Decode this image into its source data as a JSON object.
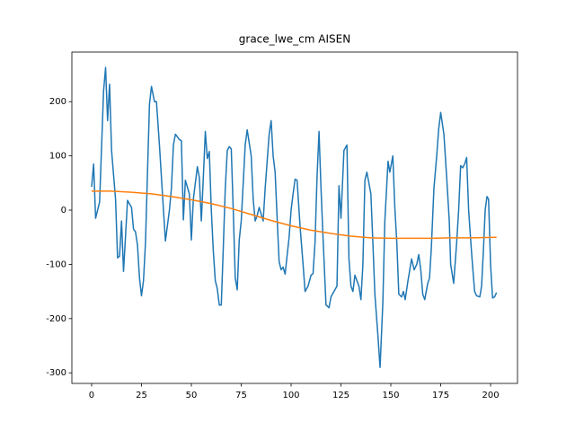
{
  "chart_data": {
    "type": "line",
    "title": "grace_lwe_cm AISEN",
    "xlim": [
      -9.9,
      213.5
    ],
    "xticks": [
      0,
      25,
      50,
      75,
      100,
      125,
      150,
      175,
      200
    ],
    "ylim": [
      -319.5,
      291.4
    ],
    "yticks": [
      -300,
      -200,
      -100,
      0,
      100,
      200
    ],
    "series": [
      {
        "color": "#1f77b4",
        "x": [
          0,
          1,
          2,
          4,
          6,
          7,
          8,
          9,
          10,
          12,
          13,
          14,
          15,
          16,
          18,
          20,
          21,
          22,
          23,
          24,
          25,
          26,
          27,
          29,
          30,
          31.5,
          32.5,
          34,
          35,
          37,
          39,
          40,
          41,
          42,
          44,
          45,
          46,
          47,
          49,
          50,
          51,
          53,
          54,
          55,
          56,
          57,
          58,
          59,
          60,
          61,
          62,
          63,
          64,
          65,
          66,
          67,
          68,
          69,
          70,
          71,
          72,
          73,
          74,
          75,
          76,
          77,
          78,
          80,
          81,
          82,
          83,
          84,
          86,
          87,
          89,
          90,
          91,
          92,
          93,
          94,
          95,
          96,
          97,
          99,
          100,
          101,
          102,
          103,
          104.5,
          106,
          107,
          108.5,
          110,
          111,
          112,
          113,
          114,
          115,
          116,
          117.5,
          119,
          120,
          121.5,
          123,
          124,
          125,
          126.5,
          128,
          129,
          130,
          131,
          132,
          134,
          135,
          136,
          137,
          138,
          140,
          141,
          142,
          143.5,
          144.6,
          146,
          147,
          148.6,
          149.5,
          151,
          152,
          153,
          154,
          155.4,
          156.3,
          157.2,
          158.6,
          160.4,
          161.7,
          163,
          164,
          165,
          166,
          167,
          168.5,
          169.4,
          170.3,
          171.6,
          173,
          174,
          175,
          176.6,
          178,
          179.3,
          180,
          181.5,
          183,
          184,
          185,
          186,
          187,
          188,
          189,
          190.5,
          192,
          193,
          194.6,
          195.5,
          196.4,
          197.3,
          198.2,
          199,
          200,
          201,
          202,
          203
        ],
        "values": [
          43,
          85,
          -15,
          15,
          220,
          263,
          165,
          232,
          110,
          20,
          -88,
          -85,
          -20,
          -113,
          18,
          5,
          -35,
          -40,
          -65,
          -125,
          -158,
          -130,
          -60,
          195,
          228,
          200,
          200,
          120,
          60,
          -57,
          0,
          40,
          120,
          140,
          130,
          128,
          -18,
          55,
          30,
          -55,
          20,
          80,
          60,
          -20,
          60,
          145,
          95,
          108,
          0,
          -75,
          -130,
          -145,
          -175,
          -175,
          -70,
          40,
          110,
          117,
          113,
          0,
          -125,
          -147,
          -55,
          -20,
          50,
          120,
          148,
          100,
          20,
          -20,
          -10,
          5,
          -20,
          40,
          140,
          165,
          100,
          70,
          -15,
          -95,
          -110,
          -105,
          -118,
          -50,
          0,
          30,
          57,
          55,
          -30,
          -100,
          -150,
          -140,
          -120,
          -117,
          -60,
          60,
          145,
          40,
          -50,
          -175,
          -180,
          -160,
          -150,
          -140,
          45,
          -15,
          110,
          120,
          -90,
          -140,
          -150,
          -120,
          -140,
          -165,
          -100,
          55,
          70,
          30,
          -60,
          -155,
          -230,
          -290,
          -170,
          -20,
          90,
          70,
          100,
          5,
          -60,
          -155,
          -160,
          -150,
          -165,
          -130,
          -90,
          -110,
          -100,
          -82,
          -110,
          -155,
          -165,
          -135,
          -125,
          -70,
          40,
          100,
          150,
          180,
          140,
          60,
          -20,
          -100,
          -135,
          -60,
          0,
          82,
          78,
          85,
          97,
          0,
          -80,
          -150,
          -158,
          -160,
          -140,
          -75,
          0,
          25,
          20,
          -100,
          -162,
          -160,
          -152
        ]
      },
      {
        "color": "#ff7f0e",
        "x": [
          0,
          10,
          20,
          30,
          40,
          50,
          60,
          70,
          80,
          90,
          100,
          110,
          120,
          130,
          140,
          150,
          160,
          170,
          180,
          190,
          203
        ],
        "values": [
          35,
          35,
          33,
          30,
          25,
          19,
          12,
          3,
          -8,
          -19,
          -29,
          -37,
          -43,
          -48,
          -51,
          -52,
          -52,
          -52,
          -51,
          -51,
          -50
        ]
      }
    ]
  }
}
